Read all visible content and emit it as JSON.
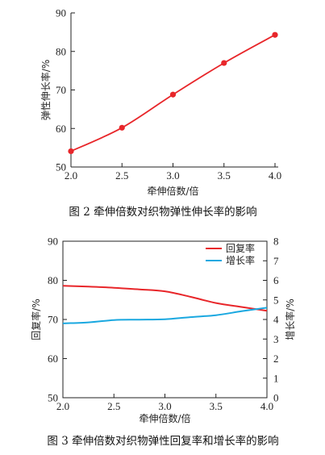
{
  "figures": [
    {
      "caption": "图 2   牵伸倍数对织物弹性伸长率的影响"
    },
    {
      "caption": "图 3   牵伸倍数对织物弹性回复率和增长率的影响"
    }
  ],
  "colors": {
    "red": "#e8262a",
    "blue": "#1aa8e0",
    "axis": "#222222"
  },
  "chart_data": [
    {
      "type": "line",
      "xlabel": "牵伸倍数/倍",
      "ylabel": "弹性伸长率/%",
      "xlim": [
        2.0,
        4.0
      ],
      "ylim": [
        50,
        90
      ],
      "xticks": [
        "2.0",
        "2.5",
        "3.0",
        "3.5",
        "4.0"
      ],
      "yticks": [
        "50",
        "60",
        "70",
        "80",
        "90"
      ],
      "markers": true,
      "series": [
        {
          "color": "#e8262a",
          "x": [
            2.0,
            2.5,
            3.0,
            3.5,
            4.0
          ],
          "values": [
            54.1,
            60.2,
            68.8,
            77.0,
            84.3
          ]
        }
      ]
    },
    {
      "type": "line",
      "xlabel": "牵伸倍数/倍",
      "ylabel": "回复率/%",
      "y2label": "增长率/%",
      "xlim": [
        2.0,
        4.0
      ],
      "ylim": [
        50,
        90
      ],
      "y2lim": [
        0,
        8
      ],
      "xticks": [
        "2.0",
        "2.5",
        "3.0",
        "3.5",
        "4.0"
      ],
      "yticks": [
        "50",
        "60",
        "70",
        "80",
        "90"
      ],
      "y2ticks": [
        "0",
        "1",
        "2",
        "3",
        "4",
        "5",
        "6",
        "7",
        "8"
      ],
      "legend_position": "top-right",
      "series": [
        {
          "name": "回复率",
          "axis": "left",
          "color": "#e8262a",
          "x": [
            2.0,
            2.25,
            2.5,
            2.75,
            3.0,
            3.25,
            3.5,
            3.75,
            4.0
          ],
          "values": [
            78.6,
            78.4,
            78.1,
            77.7,
            77.2,
            75.8,
            74.2,
            73.2,
            72.2
          ]
        },
        {
          "name": "增长率",
          "axis": "right",
          "color": "#1aa8e0",
          "x": [
            2.0,
            2.25,
            2.5,
            2.75,
            3.0,
            3.25,
            3.5,
            3.75,
            4.0
          ],
          "values": [
            3.8,
            3.85,
            3.97,
            3.99,
            4.01,
            4.12,
            4.22,
            4.42,
            4.6
          ]
        }
      ]
    }
  ]
}
